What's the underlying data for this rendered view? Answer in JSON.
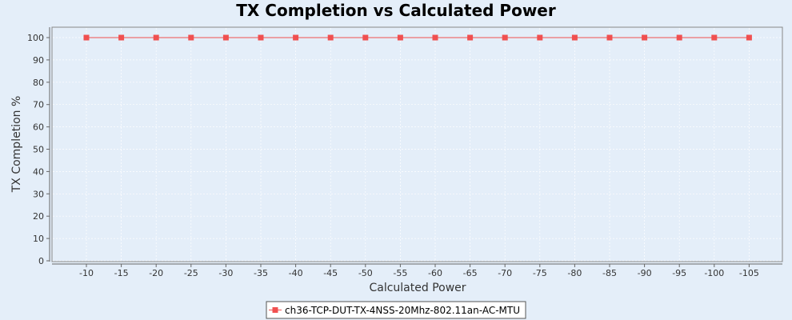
{
  "chart_data": {
    "type": "line",
    "title": "TX Completion vs Calculated Power",
    "xlabel": "Calculated Power",
    "ylabel": "TX Completion %",
    "categories": [
      "-10",
      "-15",
      "-20",
      "-25",
      "-30",
      "-35",
      "-40",
      "-45",
      "-50",
      "-55",
      "-60",
      "-65",
      "-70",
      "-75",
      "-80",
      "-85",
      "-90",
      "-95",
      "-100",
      "-105"
    ],
    "series": [
      {
        "name": "ch36-TCP-DUT-TX-4NSS-20Mhz-802.11an-AC-MTU",
        "color": "#f05050",
        "marker": "square",
        "values": [
          100,
          100,
          100,
          100,
          100,
          100,
          100,
          100,
          100,
          100,
          100,
          100,
          100,
          100,
          100,
          100,
          100,
          100,
          100,
          100
        ]
      }
    ],
    "ylim": [
      0,
      100
    ],
    "yticks": [
      0,
      10,
      20,
      30,
      40,
      50,
      60,
      70,
      80,
      90,
      100
    ],
    "grid": true,
    "legend": "bottom-center"
  }
}
